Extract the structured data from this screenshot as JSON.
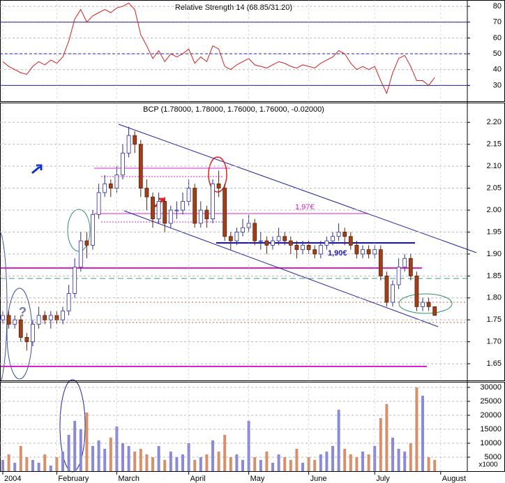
{
  "chart_data": [
    {
      "type": "line",
      "title": "Relative Strength 14 (68.85/31.20)",
      "color": "#d02020",
      "values": [
        45,
        42,
        40,
        38,
        37,
        42,
        45,
        43,
        46,
        44,
        48,
        58,
        72,
        78,
        70,
        74,
        76,
        78,
        76,
        79,
        80,
        82,
        78,
        62,
        55,
        47,
        52,
        45,
        50,
        48,
        50,
        53,
        44,
        48,
        45,
        55,
        53,
        42,
        40,
        43,
        45,
        47,
        43,
        42,
        41,
        43,
        45,
        44,
        42,
        41,
        43,
        42,
        41,
        44,
        46,
        48,
        52,
        50,
        44,
        40,
        42,
        40,
        42,
        33,
        25,
        38,
        47,
        49,
        42,
        33,
        33,
        30,
        35,
        null,
        null,
        null,
        null,
        null
      ],
      "ylim": [
        20,
        84
      ],
      "yticks": [
        30,
        40,
        50,
        60,
        70,
        80
      ],
      "levels": [
        30,
        50,
        70
      ],
      "level_color": "#2020a0"
    },
    {
      "type": "candlestick",
      "title": "BCP (1.78000, 1.78000, 1.76000, 1.76000, -0.02000)",
      "open": [
        1.75,
        1.76,
        1.74,
        1.75,
        1.71,
        1.7,
        1.74,
        1.76,
        1.75,
        1.76,
        1.75,
        1.77,
        1.81,
        1.87,
        1.93,
        1.92,
        1.99,
        2.04,
        2.06,
        2.05,
        2.08,
        2.13,
        2.17,
        2.15,
        2.05,
        2.03,
        1.98,
        2.02,
        1.97,
        2.0,
        2.0,
        2.02,
        2.05,
        1.97,
        2.0,
        1.98,
        2.06,
        2.05,
        1.94,
        1.93,
        1.95,
        1.96,
        1.97,
        1.93,
        1.93,
        1.92,
        1.93,
        1.94,
        1.93,
        1.92,
        1.91,
        1.92,
        1.91,
        1.9,
        1.92,
        1.93,
        1.94,
        1.95,
        1.94,
        1.92,
        1.9,
        1.91,
        1.9,
        1.91,
        1.85,
        1.79,
        1.83,
        1.87,
        1.89,
        1.85,
        1.78,
        1.79,
        1.78,
        null,
        null,
        null,
        null,
        null
      ],
      "high": [
        1.77,
        1.77,
        1.76,
        1.76,
        1.72,
        1.75,
        1.78,
        1.77,
        1.77,
        1.77,
        1.78,
        1.83,
        1.89,
        1.95,
        1.95,
        2.0,
        2.06,
        2.08,
        2.07,
        2.1,
        2.15,
        2.19,
        2.18,
        2.16,
        2.07,
        2.04,
        2.04,
        2.03,
        2.01,
        2.02,
        2.04,
        2.07,
        2.06,
        2.02,
        2.01,
        2.07,
        2.09,
        2.06,
        1.95,
        1.96,
        1.98,
        1.99,
        1.98,
        1.95,
        1.94,
        1.94,
        1.96,
        1.95,
        1.94,
        1.93,
        1.93,
        1.93,
        1.92,
        1.93,
        1.94,
        1.95,
        1.97,
        1.96,
        1.95,
        1.93,
        1.92,
        1.92,
        1.92,
        1.92,
        1.86,
        1.84,
        1.89,
        1.9,
        1.9,
        1.86,
        1.8,
        1.8,
        1.78,
        null,
        null,
        null,
        null,
        null
      ],
      "low": [
        1.74,
        1.73,
        1.73,
        1.7,
        1.68,
        1.69,
        1.73,
        1.74,
        1.73,
        1.74,
        1.74,
        1.76,
        1.8,
        1.86,
        1.89,
        1.91,
        1.98,
        2.03,
        2.03,
        2.04,
        2.07,
        2.12,
        2.13,
        2.03,
        2.0,
        1.96,
        1.97,
        1.95,
        1.96,
        1.98,
        1.99,
        2.01,
        1.96,
        1.96,
        1.96,
        1.97,
        2.03,
        1.93,
        1.91,
        1.92,
        1.94,
        1.95,
        1.92,
        1.91,
        1.9,
        1.91,
        1.92,
        1.92,
        1.9,
        1.89,
        1.9,
        1.9,
        1.89,
        1.89,
        1.91,
        1.92,
        1.93,
        1.92,
        1.91,
        1.89,
        1.89,
        1.89,
        1.89,
        1.84,
        1.78,
        1.78,
        1.82,
        1.86,
        1.84,
        1.77,
        1.77,
        1.77,
        1.76,
        null,
        null,
        null,
        null,
        null
      ],
      "close": [
        1.76,
        1.74,
        1.75,
        1.71,
        1.7,
        1.74,
        1.76,
        1.75,
        1.76,
        1.75,
        1.77,
        1.81,
        1.87,
        1.93,
        1.92,
        1.99,
        2.04,
        2.06,
        2.05,
        2.08,
        2.13,
        2.17,
        2.15,
        2.05,
        2.03,
        1.98,
        2.02,
        1.97,
        2.0,
        2.0,
        2.02,
        2.05,
        1.97,
        2.0,
        1.98,
        2.06,
        2.05,
        1.94,
        1.93,
        1.95,
        1.96,
        1.97,
        1.93,
        1.93,
        1.92,
        1.93,
        1.94,
        1.93,
        1.92,
        1.91,
        1.92,
        1.91,
        1.9,
        1.92,
        1.93,
        1.94,
        1.95,
        1.94,
        1.92,
        1.9,
        1.91,
        1.9,
        1.91,
        1.85,
        1.79,
        1.83,
        1.87,
        1.89,
        1.85,
        1.78,
        1.79,
        1.78,
        1.76,
        null,
        null,
        null,
        null,
        null
      ],
      "up_color": "#ffffff",
      "up_edge": "#2a2a9a",
      "down_color": "#a0401a",
      "down_edge": "#5a2008",
      "ylim": [
        1.612,
        2.245
      ],
      "yticks": [
        1.65,
        {
          "value": 1.7,
          "label": "1.70"
        },
        1.75,
        {
          "value": 1.8,
          "label": "1.80"
        },
        1.85,
        {
          "value": 1.9,
          "label": "1.90"
        },
        1.95,
        {
          "value": 2,
          "label": "2.00"
        },
        2.05,
        {
          "value": 2.1,
          "label": "2.10"
        },
        2.15,
        {
          "value": 2.2,
          "label": "2.20"
        }
      ],
      "annotations": [
        "1,97€",
        "1,90€",
        "?"
      ]
    },
    {
      "type": "bar",
      "unit_label": "x1000",
      "categories": [
        "2004",
        null,
        null,
        null,
        null,
        null,
        null,
        null,
        null,
        "February",
        null,
        null,
        null,
        null,
        null,
        null,
        null,
        null,
        null,
        "March",
        null,
        null,
        null,
        null,
        null,
        null,
        null,
        null,
        null,
        null,
        null,
        "April",
        null,
        null,
        null,
        null,
        null,
        null,
        null,
        null,
        null,
        "May",
        null,
        null,
        null,
        null,
        null,
        null,
        null,
        null,
        null,
        "June",
        null,
        null,
        null,
        null,
        null,
        null,
        null,
        null,
        null,
        null,
        "July",
        null,
        null,
        null,
        null,
        null,
        null,
        null,
        null,
        null,
        null,
        "August",
        null,
        null,
        null,
        null
      ],
      "values": [
        4000,
        6000,
        3000,
        9000,
        5000,
        4000,
        3000,
        6000,
        2000,
        5000,
        7000,
        13000,
        18000,
        15000,
        21000,
        9000,
        11000,
        8000,
        12000,
        16000,
        10000,
        9000,
        7000,
        8000,
        6000,
        5000,
        9000,
        4000,
        7000,
        5000,
        6000,
        10000,
        4000,
        5000,
        6000,
        11000,
        7000,
        13000,
        5000,
        6000,
        4000,
        18000,
        5000,
        4000,
        7000,
        3000,
        6000,
        5000,
        4000,
        8000,
        3000,
        5000,
        4000,
        6000,
        7000,
        9000,
        22000,
        8000,
        6000,
        5000,
        7000,
        6000,
        9000,
        19000,
        24000,
        12000,
        8000,
        7000,
        10000,
        30000,
        27000,
        5000,
        4000,
        null,
        null,
        null,
        null,
        null
      ],
      "up_color": "#8a8ad8",
      "down_color": "#d8906a",
      "ylim": [
        0,
        32000
      ],
      "yticks": [
        5000,
        10000,
        15000,
        20000,
        25000,
        30000
      ]
    }
  ]
}
